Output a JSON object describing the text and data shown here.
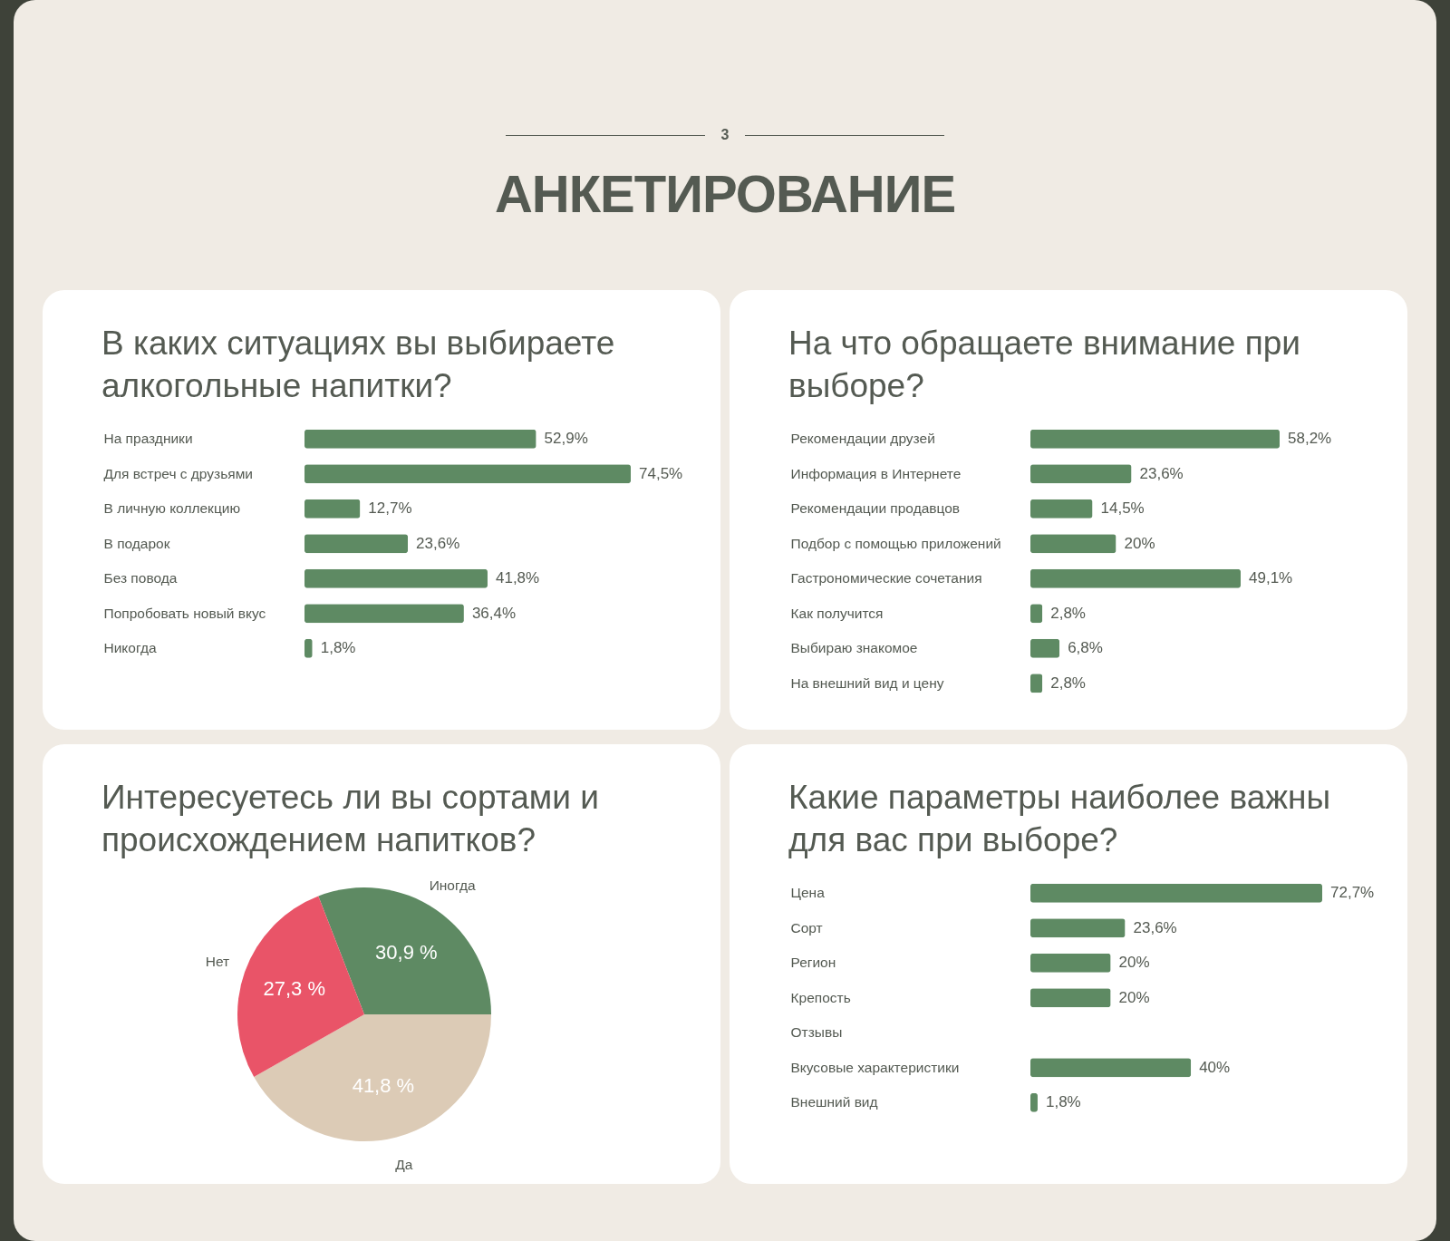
{
  "chart_data": [
    {
      "type": "other",
      "title": "АНКЕТИРОВАНИЕ",
      "annotations": [
        "3"
      ]
    },
    {
      "type": "bar",
      "orientation": "horizontal",
      "title": "В каких ситуациях вы выбираете алкогольные напитки?",
      "categories": [
        "На праздники",
        "Для встреч с друзьями",
        "В личную коллекцию",
        "В подарок",
        "Без повода",
        "Попробовать новый вкус",
        "Никогда"
      ],
      "values": [
        52.9,
        74.5,
        12.7,
        23.6,
        41.8,
        36.4,
        1.8
      ],
      "value_labels": [
        "52,9%",
        "74,5%",
        "12,7%",
        "23,6%",
        "41,8%",
        "36,4%",
        "1,8%"
      ],
      "color": "#5e8a63"
    },
    {
      "type": "bar",
      "orientation": "horizontal",
      "title": "На что обращаете внимание при выборе?",
      "categories": [
        "Рекомендации друзей",
        "Информация в Интернете",
        "Рекомендации продавцов",
        "Подбор с помощью приложений",
        "Гастрономические сочетания",
        "Как получится",
        "Выбираю знакомое",
        "На внешний вид и цену"
      ],
      "values": [
        58.2,
        23.6,
        14.5,
        20,
        49.1,
        2.8,
        6.8,
        2.8
      ],
      "value_labels": [
        "58,2%",
        "23,6%",
        "14,5%",
        "20%",
        "49,1%",
        "2,8%",
        "6,8%",
        "2,8%"
      ],
      "color": "#5e8a63"
    },
    {
      "type": "pie",
      "title": "Интересуетесь ли вы сортами и происхождением напитков?",
      "categories": [
        "Иногда",
        "Да",
        "Нет"
      ],
      "values": [
        30.9,
        41.8,
        27.3
      ],
      "value_labels": [
        "30,9 %",
        "41,8 %",
        "27,3 %"
      ],
      "colors": [
        "#5e8a63",
        "#dccbb6",
        "#e95468"
      ]
    },
    {
      "type": "bar",
      "orientation": "horizontal",
      "title": "Какие параметры наиболее важны для вас при выборе?",
      "categories": [
        "Цена",
        "Сорт",
        "Регион",
        "Крепость",
        "Отзывы",
        "Вкусовые характеристики",
        "Внешний вид"
      ],
      "values": [
        72.7,
        23.6,
        20,
        20,
        null,
        40,
        1.8
      ],
      "value_labels": [
        "72,7%",
        "23,6%",
        "20%",
        "20%",
        null,
        "40%",
        "1,8%"
      ],
      "color": "#5e8a63"
    }
  ]
}
